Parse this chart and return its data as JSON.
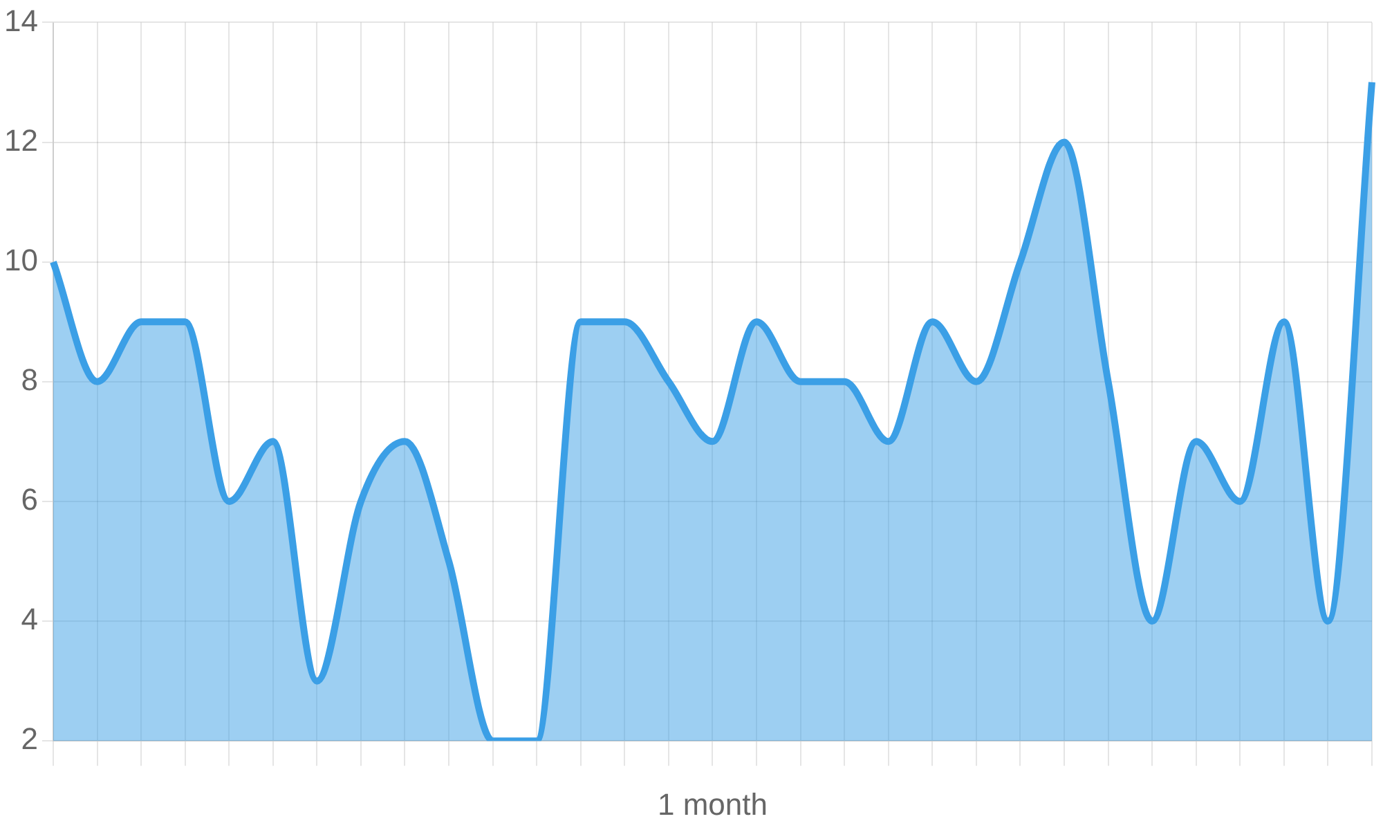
{
  "chart_data": {
    "type": "area",
    "xlabel": "1 month",
    "categories": [
      null,
      null,
      null,
      null,
      null,
      null,
      null,
      null,
      null,
      null,
      null,
      null,
      null,
      null,
      null,
      null,
      null,
      null,
      null,
      null,
      null,
      null,
      null,
      null,
      null,
      null,
      null,
      null,
      null,
      null,
      null
    ],
    "series": [
      {
        "color": "#3b9fe6",
        "values": [
          10,
          8,
          9,
          9,
          6,
          7,
          3,
          6,
          7,
          5,
          2,
          2,
          9,
          9,
          8,
          7,
          9,
          8,
          8,
          7,
          9,
          8,
          10,
          12,
          8,
          4,
          7,
          6,
          9,
          4,
          13
        ]
      }
    ],
    "ylim": [
      2,
      14
    ],
    "yticks": [
      2,
      4,
      6,
      8,
      10,
      12,
      14
    ],
    "grid": true,
    "legend": false
  }
}
